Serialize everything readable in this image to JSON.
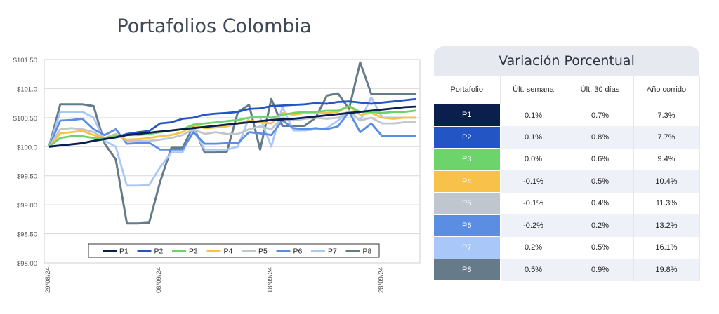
{
  "colors": {
    "P1": "#0b1f4d",
    "P2": "#2356c4",
    "P3": "#6cd46a",
    "P4": "#f8c24a",
    "P5": "#bfc6ce",
    "P6": "#5b8de3",
    "P7": "#a9c7f8",
    "P8": "#657b8a"
  },
  "chart_data": {
    "type": "line",
    "title": "Portafolios Colombia",
    "ylim": [
      98.0,
      101.5
    ],
    "y_ticks": [
      "$98.00",
      "$98.50",
      "$99.00",
      "$99.50",
      "$100.0",
      "$100.50",
      "$101.0",
      "$101.50"
    ],
    "x_ticks": [
      "29/08/24",
      "08/09/24",
      "18/09/24",
      "28/09/24"
    ],
    "legend": "bottom",
    "series": [
      {
        "name": "P1",
        "values": [
          100.0,
          100.02,
          100.04,
          100.06,
          100.1,
          100.13,
          100.16,
          100.2,
          100.22,
          100.24,
          100.26,
          100.28,
          100.3,
          100.32,
          100.34,
          100.36,
          100.38,
          100.4,
          100.42,
          100.44,
          100.46,
          100.47,
          100.48,
          100.5,
          100.52,
          100.54,
          100.56,
          100.58,
          100.6,
          100.62,
          100.64,
          100.66,
          100.68,
          100.69
        ]
      },
      {
        "name": "P2",
        "values": [
          100.0,
          100.02,
          100.04,
          100.06,
          100.1,
          100.13,
          100.16,
          100.22,
          100.25,
          100.27,
          100.4,
          100.42,
          100.48,
          100.5,
          100.55,
          100.57,
          100.58,
          100.6,
          100.65,
          100.66,
          100.7,
          100.71,
          100.72,
          100.73,
          100.75,
          100.74,
          100.77,
          100.78,
          100.76,
          100.74,
          100.76,
          100.78,
          100.8,
          100.82
        ]
      },
      {
        "name": "P3",
        "values": [
          100.0,
          100.15,
          100.18,
          100.18,
          100.15,
          100.15,
          100.18,
          100.2,
          100.2,
          100.22,
          100.25,
          100.28,
          100.3,
          100.38,
          100.4,
          100.42,
          100.44,
          100.46,
          100.5,
          100.52,
          100.5,
          100.55,
          100.58,
          100.6,
          100.6,
          100.62,
          100.62,
          100.7,
          100.6,
          100.6,
          100.58,
          100.6,
          100.6,
          100.62
        ]
      },
      {
        "name": "P4",
        "values": [
          100.0,
          100.23,
          100.25,
          100.27,
          100.2,
          100.15,
          100.2,
          100.12,
          100.13,
          100.15,
          100.18,
          100.2,
          100.25,
          100.37,
          100.32,
          100.33,
          100.35,
          100.4,
          100.45,
          100.42,
          100.4,
          100.58,
          100.55,
          100.58,
          100.58,
          100.58,
          100.6,
          100.7,
          100.55,
          100.58,
          100.5,
          100.48,
          100.5,
          100.5
        ]
      },
      {
        "name": "P5",
        "values": [
          100.0,
          100.3,
          100.32,
          100.3,
          100.25,
          100.15,
          100.22,
          100.1,
          100.1,
          100.1,
          100.12,
          100.15,
          100.2,
          100.3,
          100.22,
          100.25,
          100.22,
          100.22,
          100.3,
          100.35,
          100.3,
          100.5,
          100.45,
          100.48,
          100.5,
          100.48,
          100.5,
          100.62,
          100.45,
          100.5,
          100.4,
          100.4,
          100.42,
          100.42
        ]
      },
      {
        "name": "P6",
        "values": [
          100.0,
          100.45,
          100.46,
          100.48,
          100.3,
          100.2,
          100.3,
          100.05,
          100.06,
          100.07,
          99.95,
          99.95,
          99.95,
          100.25,
          100.05,
          100.05,
          100.06,
          100.06,
          100.25,
          100.23,
          100.2,
          100.45,
          100.32,
          100.3,
          100.32,
          100.3,
          100.35,
          100.6,
          100.25,
          100.4,
          100.18,
          100.18,
          100.18,
          100.19
        ]
      },
      {
        "name": "P7",
        "values": [
          100.0,
          100.6,
          100.6,
          100.6,
          100.5,
          100.1,
          100.0,
          99.33,
          99.33,
          99.34,
          99.65,
          99.9,
          99.9,
          100.3,
          99.95,
          99.95,
          99.95,
          100.0,
          100.5,
          100.5,
          100.0,
          100.68,
          100.28,
          100.28,
          100.3,
          100.32,
          100.45,
          100.6,
          100.45,
          100.85,
          100.5,
          100.5,
          100.5,
          100.5
        ]
      },
      {
        "name": "P8",
        "values": [
          100.0,
          100.73,
          100.73,
          100.73,
          100.7,
          100.05,
          99.78,
          98.68,
          98.68,
          98.69,
          99.4,
          99.98,
          99.98,
          100.35,
          99.9,
          99.9,
          99.91,
          100.6,
          100.72,
          99.95,
          100.82,
          100.36,
          100.36,
          100.36,
          100.5,
          100.88,
          100.92,
          100.65,
          101.45,
          100.91,
          100.91,
          100.91,
          100.91,
          100.91
        ]
      }
    ]
  },
  "table": {
    "title": "Variación Porcentual",
    "headers": [
      "Portafolio",
      "Últ. semana",
      "Últ. 30 días",
      "Año corrido"
    ],
    "rows": [
      {
        "name": "P1",
        "week": "0.1%",
        "month": "0.7%",
        "ytd": "7.3%"
      },
      {
        "name": "P2",
        "week": "0.1%",
        "month": "0.8%",
        "ytd": "7.7%"
      },
      {
        "name": "P3",
        "week": "0.0%",
        "month": "0.6%",
        "ytd": "9.4%"
      },
      {
        "name": "P4",
        "week": "-0.1%",
        "month": "0.5%",
        "ytd": "10.4%"
      },
      {
        "name": "P5",
        "week": "-0.1%",
        "month": "0.4%",
        "ytd": "11.3%"
      },
      {
        "name": "P6",
        "week": "-0.2%",
        "month": "0.2%",
        "ytd": "13.2%"
      },
      {
        "name": "P7",
        "week": "0.2%",
        "month": "0.5%",
        "ytd": "16.1%"
      },
      {
        "name": "P8",
        "week": "0.5%",
        "month": "0.9%",
        "ytd": "19.8%"
      }
    ]
  }
}
